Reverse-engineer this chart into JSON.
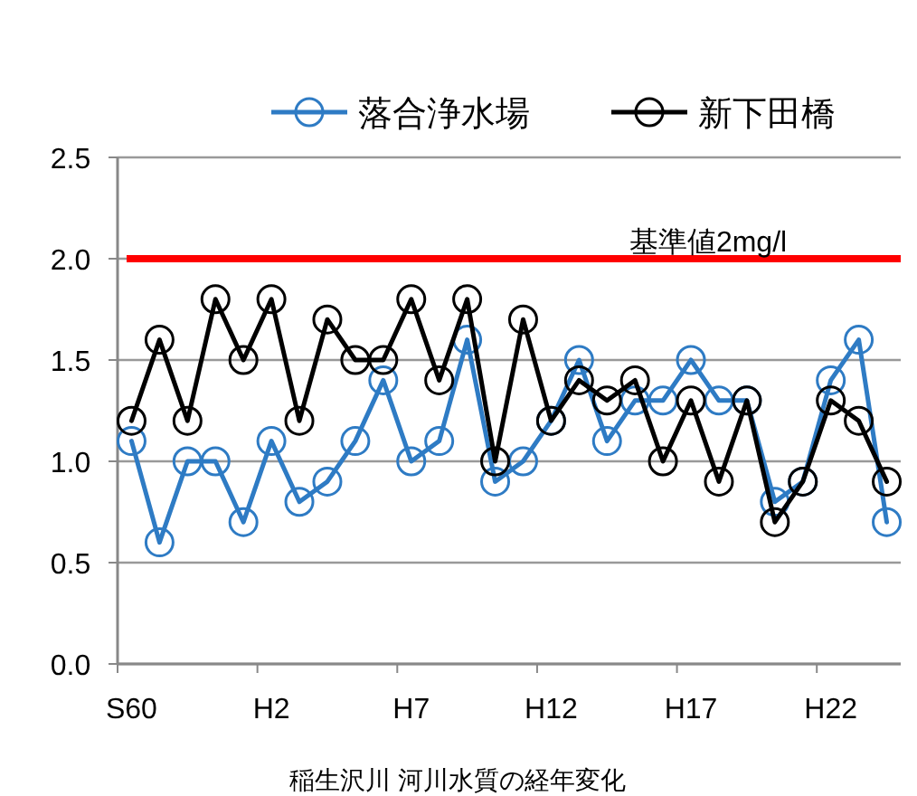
{
  "chart_data": {
    "type": "line",
    "categories": [
      "S60",
      null,
      null,
      null,
      null,
      "H2",
      null,
      null,
      null,
      null,
      "H7",
      null,
      null,
      null,
      null,
      "H12",
      null,
      null,
      null,
      null,
      "H17",
      null,
      null,
      null,
      null,
      "H22",
      null,
      null
    ],
    "series": [
      {
        "name": "落合浄水場",
        "color": "#2e7bc4",
        "values": [
          1.1,
          0.6,
          1.0,
          1.0,
          0.7,
          1.1,
          0.8,
          0.9,
          1.1,
          1.4,
          1.0,
          1.1,
          1.6,
          0.9,
          1.0,
          1.2,
          1.5,
          1.1,
          1.3,
          1.3,
          1.5,
          1.3,
          1.3,
          0.8,
          0.9,
          1.4,
          1.6,
          0.7
        ]
      },
      {
        "name": "新下田橋",
        "color": "#000000",
        "values": [
          1.2,
          1.6,
          1.2,
          1.8,
          1.5,
          1.8,
          1.2,
          1.7,
          1.5,
          1.5,
          1.8,
          1.4,
          1.8,
          1.0,
          1.7,
          1.2,
          1.4,
          1.3,
          1.4,
          1.0,
          1.3,
          0.9,
          1.3,
          0.7,
          0.9,
          1.3,
          1.2,
          0.9
        ]
      }
    ],
    "ylim": [
      0,
      2.5
    ],
    "yticks": [
      {
        "value": 0,
        "label": "0.0"
      },
      {
        "value": 0.5,
        "label": "0.5"
      },
      {
        "value": 1,
        "label": "1.0"
      },
      {
        "value": 1.5,
        "label": "1.5"
      },
      {
        "value": 2,
        "label": "2.0"
      },
      {
        "value": 2.5,
        "label": "2.5"
      }
    ],
    "ref_lines": [
      {
        "axis": "y",
        "value": 2,
        "label": "基準値2mg/l",
        "color": "#ff0000"
      }
    ],
    "annotations": [
      "稲生沢川 河川水質の経年変化"
    ],
    "grid": "y",
    "legend": "top",
    "marker": "circle",
    "line_style": "solid"
  }
}
